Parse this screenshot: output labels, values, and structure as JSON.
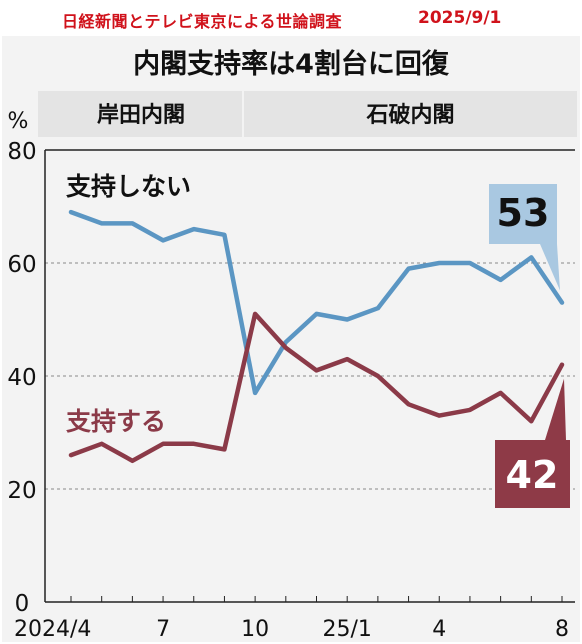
{
  "header": {
    "source": "日経新聞とテレビ東京による世論調査",
    "date": "2025/9/1",
    "title": "内閣支持率は4割台に回復"
  },
  "colors": {
    "background": "#f3f3f3",
    "band": "#e4e4e4",
    "disapprove": "#5b96c3",
    "approve": "#8b3a48",
    "disapprove_box": "#a9c8e1",
    "approve_box": "#8e3a47",
    "source_red": "#d0121b"
  },
  "chart_data": {
    "type": "line",
    "unit": "%",
    "cabinets": [
      {
        "label": "岸田内閣",
        "from": 0,
        "to": 5
      },
      {
        "label": "石破内閣",
        "from": 5,
        "to": 17
      }
    ],
    "x": [
      "2024/4",
      "2024/5",
      "2024/6",
      "2024/7",
      "2024/8",
      "2024/9",
      "2024/10",
      "2024/11",
      "2024/12",
      "2025/1",
      "2025/2",
      "2025/3",
      "2025/4",
      "2025/5",
      "2025/6",
      "2025/7",
      "2025/8"
    ],
    "xticks": [
      {
        "index": 0,
        "label": "2024/4"
      },
      {
        "index": 3,
        "label": "7"
      },
      {
        "index": 6,
        "label": "10"
      },
      {
        "index": 9,
        "label": "25/1"
      },
      {
        "index": 12,
        "label": "4"
      },
      {
        "index": 16,
        "label": "8"
      }
    ],
    "ylim": [
      0,
      80
    ],
    "yticks": [
      0,
      20,
      40,
      60,
      80
    ],
    "series": [
      {
        "name": "支持しない",
        "key": "disapprove",
        "values": [
          69,
          67,
          67,
          64,
          66,
          65,
          37,
          46,
          51,
          50,
          52,
          59,
          60,
          60,
          57,
          61,
          53
        ],
        "end_label": "53"
      },
      {
        "name": "支持する",
        "key": "approve",
        "values": [
          26,
          28,
          25,
          28,
          28,
          27,
          51,
          45,
          41,
          43,
          40,
          35,
          33,
          34,
          37,
          32,
          42
        ],
        "end_label": "42"
      }
    ]
  }
}
